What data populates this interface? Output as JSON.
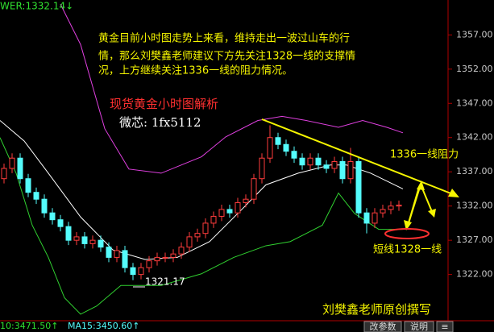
{
  "chart_data": {
    "type": "candlestick",
    "header_label": "WER:1332.14↓",
    "ylim": [
      1315.6,
      1362.1
    ],
    "yticks": [
      {
        "value": 1322,
        "label": "1322.00"
      },
      {
        "value": 1327,
        "label": "1327.00"
      },
      {
        "value": 1332,
        "label": "1332.00"
      },
      {
        "value": 1337,
        "label": "1337.00"
      },
      {
        "value": 1342,
        "label": "1342.00"
      },
      {
        "value": 1347,
        "label": "1347.00"
      },
      {
        "value": 1352,
        "label": "1352.00"
      },
      {
        "value": 1357,
        "label": "1357.00"
      }
    ],
    "up_color": "#ff3c3c",
    "down_color": "#54fcfc",
    "candles": {
      "open": [
        1336,
        1337.5,
        1339,
        1336,
        1334,
        1333,
        1331,
        1330,
        1329,
        1327,
        1327.5,
        1326.5,
        1327,
        1326,
        1324.5,
        1325.5,
        1323,
        1322,
        1323,
        1324,
        1324.5,
        1324.5,
        1325,
        1326,
        1327.5,
        1328,
        1329.5,
        1330.5,
        1331.5,
        1331,
        1332.5,
        1333,
        1336,
        1339,
        1342,
        1341,
        1340,
        1339,
        1338,
        1339,
        1338,
        1337.5,
        1338.5,
        1336,
        1338.5,
        1331,
        1329.5,
        1331,
        1331.5,
        1332
      ],
      "high": [
        1338.2,
        1339.7,
        1339.7,
        1336.7,
        1334.7,
        1333.7,
        1331.7,
        1330.7,
        1329.7,
        1328.2,
        1328.2,
        1327.7,
        1327.7,
        1326.7,
        1326.2,
        1326.2,
        1323.7,
        1323.7,
        1324.7,
        1325.2,
        1325.2,
        1325.7,
        1326.7,
        1328.2,
        1328.7,
        1330.2,
        1331.2,
        1332.2,
        1332.2,
        1333.2,
        1333.7,
        1336.7,
        1339.7,
        1343.8,
        1342.7,
        1341.7,
        1340.7,
        1339.7,
        1339.7,
        1339.7,
        1338.7,
        1339.2,
        1339.2,
        1340.5,
        1339.2,
        1331.7,
        1331.7,
        1332.2,
        1332.7,
        1332.8
      ],
      "low": [
        1335.3,
        1336.8,
        1335.3,
        1333.3,
        1332.3,
        1330.3,
        1329.3,
        1328.3,
        1326.3,
        1326.3,
        1325.8,
        1325.8,
        1325.3,
        1323.8,
        1323.8,
        1322.3,
        1321.17,
        1321.3,
        1322.3,
        1323.3,
        1323.8,
        1323.8,
        1324.3,
        1325.3,
        1326.8,
        1327.3,
        1328.8,
        1329.8,
        1330.3,
        1330.3,
        1331.8,
        1332.3,
        1335.3,
        1338.3,
        1340.3,
        1339.3,
        1338.3,
        1337.3,
        1337.3,
        1337.3,
        1336.8,
        1336.8,
        1335.3,
        1335.3,
        1330.3,
        1328,
        1328.8,
        1330.3,
        1330.8,
        1331.3
      ],
      "close": [
        1337.5,
        1339,
        1336,
        1334,
        1333,
        1331,
        1330,
        1329,
        1327,
        1327.5,
        1326.5,
        1327,
        1326,
        1324.5,
        1325.5,
        1323,
        1322,
        1323,
        1324,
        1324.5,
        1324.5,
        1325,
        1326,
        1327.5,
        1328,
        1329.5,
        1330.5,
        1331.5,
        1331,
        1332.5,
        1333,
        1336,
        1339,
        1342,
        1341,
        1340,
        1339,
        1338,
        1339,
        1338,
        1337.5,
        1338.5,
        1336,
        1338.5,
        1331,
        1329.5,
        1331,
        1331.5,
        1332,
        1332.14
      ]
    },
    "bands": [
      {
        "color": "#e040e0",
        "x": [
          7,
          9.5,
          12.5,
          15.5,
          19.5,
          24.5,
          27.5,
          31.5,
          34.5,
          37.5,
          41.5,
          44.5,
          47.5,
          49.5
        ],
        "values": [
          1361.5,
          1355.6,
          1343.3,
          1337.4,
          1336.8,
          1339.2,
          1342.1,
          1344.5,
          1345.1,
          1344.5,
          1343.5,
          1344.5,
          1343.5,
          1342.7
        ]
      },
      {
        "color": "#ffffff",
        "x": [
          -0.5,
          2.5,
          5.5,
          9.5,
          13.5,
          17.5,
          21.5,
          25.5,
          29.5,
          32.5,
          36.5,
          40.5,
          42.5,
          45.5,
          49.5
        ],
        "values": [
          1344.5,
          1341.5,
          1336.8,
          1330.4,
          1325.6,
          1324.2,
          1324.5,
          1326.8,
          1331.5,
          1335.1,
          1336.8,
          1338,
          1338,
          1336.8,
          1334.5
        ]
      },
      {
        "color": "#30d030",
        "x": [
          -0.5,
          1.5,
          3.5,
          5.5,
          7.5,
          9.5,
          11.5,
          14.5,
          19.5,
          24.5,
          28.5,
          32.5,
          35.5,
          39.5,
          41.5,
          43.5,
          46.5,
          49.5
        ],
        "values": [
          1342,
          1336.8,
          1329.2,
          1324.5,
          1318.6,
          1316.2,
          1317.4,
          1320.4,
          1320.4,
          1322.1,
          1324.5,
          1326.2,
          1326.8,
          1329.2,
          1333.9,
          1330.9,
          1328.6,
          1328.6
        ]
      }
    ],
    "annotations": {
      "paragraph": [
        "黄金目前小时图走势上来看，维持走出一波过山车的行",
        "情，那么刘樊鑫老师建议下方先关注1328一线的支撑情",
        "况，上方继续关注1336一线的阻力情况。"
      ],
      "heading": "现货黄金小时图解析",
      "contact": "微芯: 1fx5112",
      "resistance": "1336一线阻力",
      "support": "短线1328一线",
      "low_label": "1321.17",
      "author": "刘樊鑫老师原创撰写"
    },
    "footer": {
      "ma10": "10:3471.50↑",
      "ma15": "MA15:3450.60↑",
      "buttons": [
        "改参数",
        "说明",
        "≡"
      ]
    }
  }
}
